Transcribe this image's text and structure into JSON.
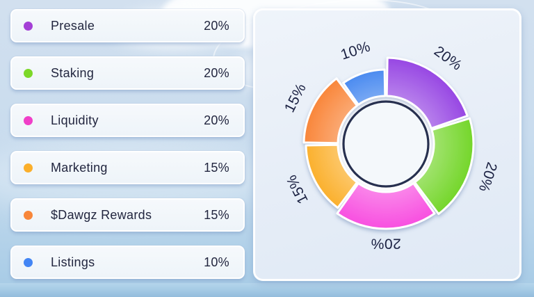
{
  "legend": {
    "items": [
      {
        "label": "Presale",
        "value": "20%",
        "color": "#a43fd6"
      },
      {
        "label": "Staking",
        "value": "20%",
        "color": "#7cd828"
      },
      {
        "label": "Liquidity",
        "value": "20%",
        "color": "#f03fc8"
      },
      {
        "label": "Marketing",
        "value": "15%",
        "color": "#fbaf2b"
      },
      {
        "label": "$Dawgz Rewards",
        "value": "15%",
        "color": "#f8863a"
      },
      {
        "label": "Listings",
        "value": "10%",
        "color": "#4285f4"
      }
    ]
  },
  "chart_data": {
    "type": "pie",
    "subtype": "donut",
    "categories": [
      "Presale",
      "Staking",
      "Liquidity",
      "Marketing",
      "$Dawgz Rewards",
      "Listings"
    ],
    "values": [
      20,
      20,
      20,
      15,
      15,
      10
    ],
    "unit": "%",
    "labels": [
      "20%",
      "20%",
      "20%",
      "15%",
      "15%",
      "10%"
    ],
    "colors": [
      "#9747e3",
      "#74d62a",
      "#f84fe0",
      "#fbb02d",
      "#f9863a",
      "#4b8bf0"
    ],
    "start_angle_deg": 0,
    "direction": "clockwise",
    "legend_position": "left",
    "label_style": "radial-rotated",
    "inner_radius": 69,
    "outer_radii": [
      124,
      126,
      122,
      115,
      118,
      107
    ],
    "label_radii": [
      151,
      153,
      142,
      142,
      145,
      140
    ],
    "ring_color": "#27304f",
    "ring_fill": "#f4f8fb",
    "label_color": "#1b2142"
  }
}
